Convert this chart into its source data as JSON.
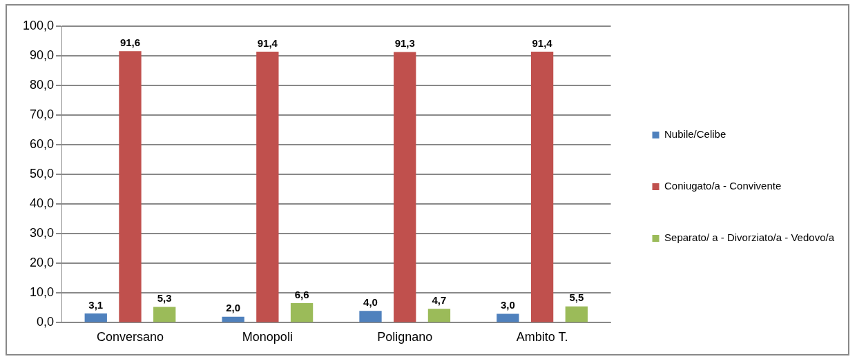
{
  "chart_data": {
    "type": "bar",
    "categories": [
      "Conversano",
      "Monopoli",
      "Polignano",
      "Ambito T."
    ],
    "series": [
      {
        "name": "Nubile/Celibe",
        "color": "#4f81bd",
        "values": [
          3.1,
          2.0,
          4.0,
          3.0
        ],
        "value_labels": [
          "3,1",
          "2,0",
          "4,0",
          "3,0"
        ]
      },
      {
        "name": "Coniugato/a - Convivente",
        "color": "#c0504d",
        "values": [
          91.6,
          91.4,
          91.3,
          91.4
        ],
        "value_labels": [
          "91,6",
          "91,4",
          "91,3",
          "91,4"
        ]
      },
      {
        "name": "Separato/ a - Divorziato/a - Vedovo/a",
        "color": "#9bbb59",
        "values": [
          5.3,
          6.6,
          4.7,
          5.5
        ],
        "value_labels": [
          "5,3",
          "6,6",
          "4,7",
          "5,5"
        ]
      }
    ],
    "ylim": [
      0,
      100
    ],
    "yticks": [
      {
        "value": 0,
        "label": "0,0"
      },
      {
        "value": 10,
        "label": "10,0"
      },
      {
        "value": 20,
        "label": "20,0"
      },
      {
        "value": 30,
        "label": "30,0"
      },
      {
        "value": 40,
        "label": "40,0"
      },
      {
        "value": 50,
        "label": "50,0"
      },
      {
        "value": 60,
        "label": "60,0"
      },
      {
        "value": 70,
        "label": "70,0"
      },
      {
        "value": 80,
        "label": "80,0"
      },
      {
        "value": 90,
        "label": "90,0"
      },
      {
        "value": 100,
        "label": "100,0"
      }
    ],
    "grid": "y",
    "legend": "right"
  }
}
